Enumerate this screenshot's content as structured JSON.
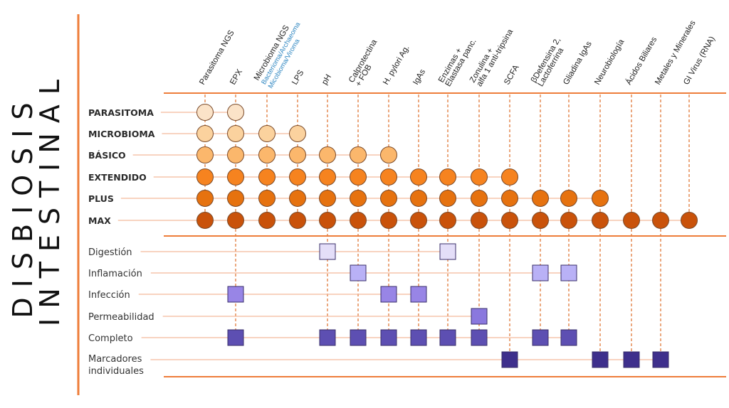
{
  "title": {
    "line1": "DISBIOSIS",
    "line2": "INTESTINAL"
  },
  "columns": [
    {
      "label": "Parasitoma NGS"
    },
    {
      "label": "EPX"
    },
    {
      "label": "Microbioma NGS",
      "sub1": "Bacterioma/Archaeoma",
      "sub2": "Micobioma/Viroma"
    },
    {
      "label": "LPS"
    },
    {
      "label": "pH"
    },
    {
      "label": "Calprotectina",
      "label2": "+ FOB"
    },
    {
      "label": "H. pylori Ag."
    },
    {
      "label": "IgAs"
    },
    {
      "label": "Enzimas +",
      "label2": "Elastasa panc."
    },
    {
      "label": "Zonulina +",
      "label2": "alfa 1 anti-tripsina"
    },
    {
      "label": "SCFA"
    },
    {
      "label": "βDefensina 2,",
      "label2": "Lactoferrina"
    },
    {
      "label": "Gliadina IgAs"
    },
    {
      "label": "Neurobiología"
    },
    {
      "label": "Ácidos Biliares"
    },
    {
      "label": "Metales y Minerales"
    },
    {
      "label": "GI Virus (RNA)"
    }
  ],
  "panels": [
    {
      "label": "PARASITOMA",
      "color": "#fbe3c8",
      "columns": [
        0,
        1
      ]
    },
    {
      "label": "MICROBIOMA",
      "color": "#fbd29e",
      "columns": [
        0,
        1,
        2,
        3
      ]
    },
    {
      "label": "BÁSICO",
      "color": "#fbb76c",
      "columns": [
        0,
        1,
        2,
        3,
        4,
        5,
        6
      ]
    },
    {
      "label": "EXTENDIDO",
      "color": "#f6831f",
      "columns": [
        0,
        1,
        2,
        3,
        4,
        5,
        6,
        7,
        8,
        9,
        10
      ]
    },
    {
      "label": "PLUS",
      "color": "#e6720f",
      "columns": [
        0,
        1,
        2,
        3,
        4,
        5,
        6,
        7,
        8,
        9,
        10,
        11,
        12,
        13
      ]
    },
    {
      "label": "MAX",
      "color": "#c9520a",
      "columns": [
        0,
        1,
        2,
        3,
        4,
        5,
        6,
        7,
        8,
        9,
        10,
        11,
        12,
        13,
        14,
        15,
        16
      ]
    }
  ],
  "profiles": [
    {
      "label": "Digestión",
      "color": "#e4def8",
      "columns": [
        4,
        8
      ]
    },
    {
      "label": "Inflamación",
      "color": "#b9b1f6",
      "columns": [
        5,
        11,
        12
      ]
    },
    {
      "label": "Infección",
      "color": "#9885e6",
      "columns": [
        1,
        6,
        7
      ]
    },
    {
      "label": "Permeabilidad",
      "color": "#8a78de",
      "columns": [
        9
      ]
    },
    {
      "label": "Completo",
      "color": "#5d4fb2",
      "columns": [
        1,
        4,
        5,
        6,
        7,
        8,
        9,
        11,
        12
      ]
    },
    {
      "label": "Marcadores",
      "label2": "individuales",
      "color": "#3e2f8c",
      "columns": [
        10,
        13,
        14,
        15
      ]
    }
  ],
  "accent": "#ee7d3a",
  "sub_color": "#2e86c1"
}
